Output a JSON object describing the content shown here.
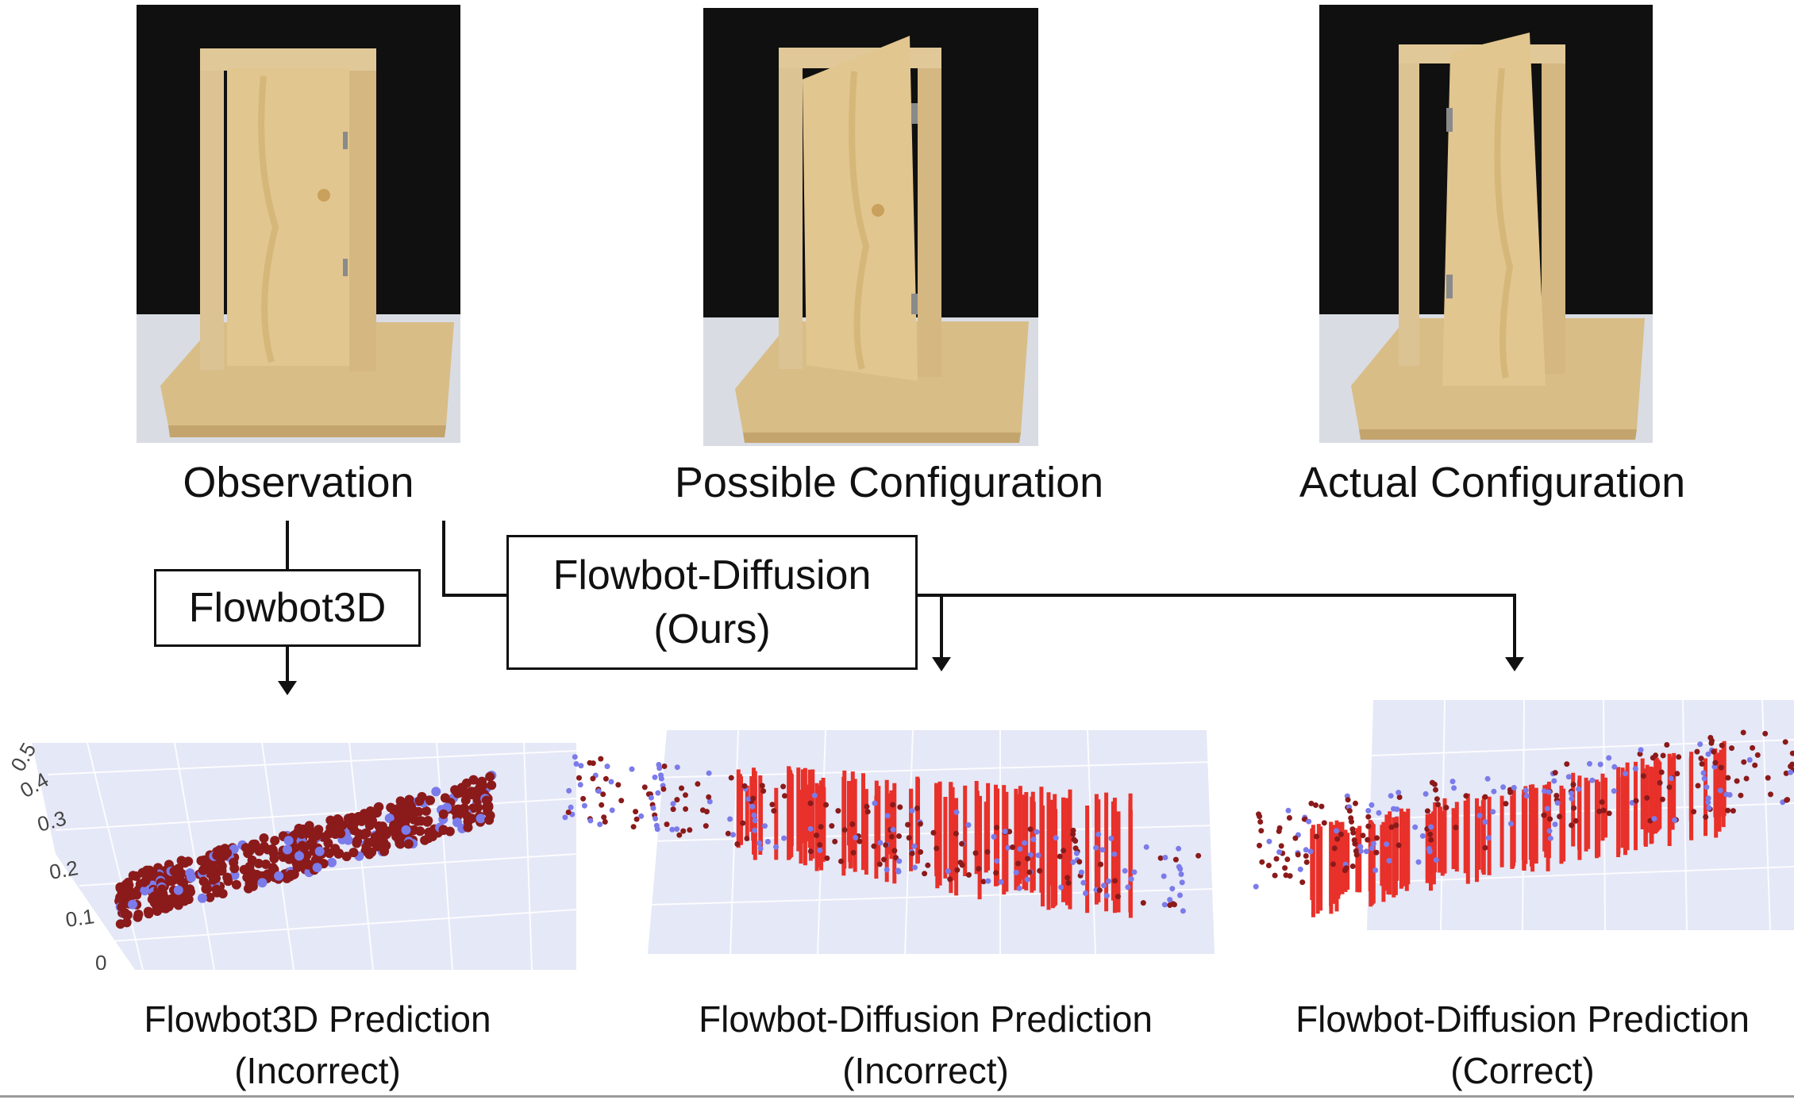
{
  "photos": {
    "observation": {
      "caption": "Observation",
      "door_state": "closed"
    },
    "possible": {
      "caption": "Possible Configuration",
      "door_state": "open-left"
    },
    "actual": {
      "caption": "Actual Configuration",
      "door_state": "open-right"
    }
  },
  "methods": {
    "flowbot3d": {
      "label": "Flowbot3D"
    },
    "diffusion": {
      "line1": "Flowbot-Diffusion",
      "line2": "(Ours)"
    }
  },
  "predictions": [
    {
      "line1": "Flowbot3D Prediction",
      "line2": "(Incorrect)"
    },
    {
      "line1": "Flowbot-Diffusion Prediction",
      "line2": "(Incorrect)"
    },
    {
      "line1": "Flowbot-Diffusion Prediction",
      "line2": "(Correct)"
    }
  ],
  "plot1_axis_ticks": [
    "0.5",
    "0.4",
    "0.3",
    "0.2",
    "0.1",
    "0"
  ],
  "colors": {
    "point_dark": "#8b1a1a",
    "point_blue": "#7b7bea",
    "flow_red": "#e8312a",
    "plot_bg": "#e5e8f6",
    "wood": "#dcc394",
    "curtain": "#101010",
    "table": "#d9dce3"
  }
}
